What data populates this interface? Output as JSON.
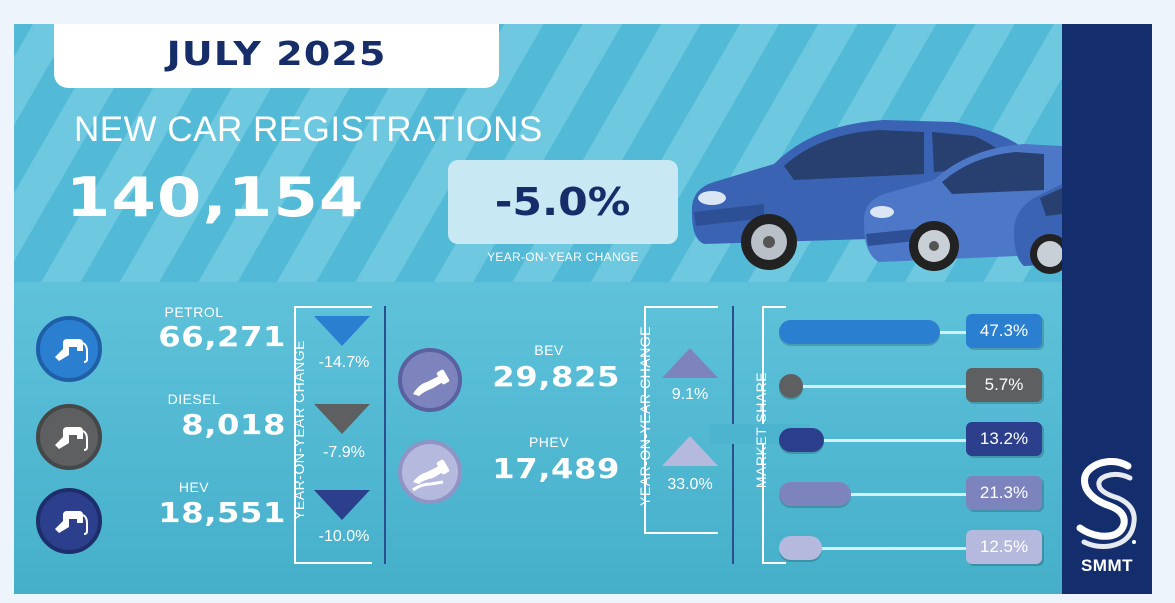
{
  "header": {
    "month": "JULY 2025",
    "title": "NEW CAR REGISTRATIONS",
    "total_registrations": "140,154",
    "yoy_change": "-5.0%",
    "yoy_caption": "YEAR-ON-YEAR CHANGE"
  },
  "fuel_types": [
    {
      "name": "PETROL",
      "count": "66,271",
      "yoy_change": "-14.7%",
      "direction": "down",
      "color": "#2a7fd0"
    },
    {
      "name": "DIESEL",
      "count": "8,018",
      "yoy_change": "-7.9%",
      "direction": "down",
      "color": "#5d5f61"
    },
    {
      "name": "HEV",
      "count": "18,551",
      "yoy_change": "-10.0%",
      "direction": "down",
      "color": "#2b3f8c"
    }
  ],
  "electric_types": [
    {
      "name": "BEV",
      "count": "29,825",
      "yoy_change": "9.1%",
      "direction": "up",
      "color": "#7d84bd"
    },
    {
      "name": "PHEV",
      "count": "17,489",
      "yoy_change": "33.0%",
      "direction": "up",
      "color": "#b5b9dd"
    }
  ],
  "labels": {
    "yoy_vertical": "YEAR-ON-YEAR CHANGE",
    "market_share": "MARKET SHARE"
  },
  "market_share": [
    {
      "segment": "PETROL",
      "value": 47.3,
      "label": "47.3%",
      "color": "#2a7fd0"
    },
    {
      "segment": "DIESEL",
      "value": 5.7,
      "label": "5.7%",
      "color": "#5d5f61"
    },
    {
      "segment": "HEV",
      "value": 13.2,
      "label": "13.2%",
      "color": "#2b3f8c"
    },
    {
      "segment": "BEV",
      "value": 21.3,
      "label": "21.3%",
      "color": "#7d84bd"
    },
    {
      "segment": "PHEV",
      "value": 12.5,
      "label": "12.5%",
      "color": "#b5b9dd"
    }
  ],
  "brand": {
    "name": "SMMT",
    "logo_icon": "smmt-logo-icon"
  }
}
